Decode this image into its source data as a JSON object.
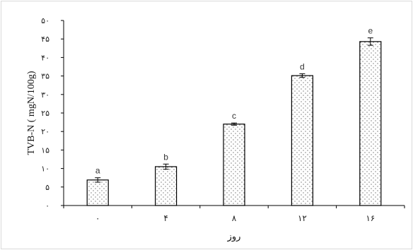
{
  "chart_data": {
    "type": "bar",
    "title": "",
    "xlabel": "روز",
    "ylabel": "TVB-N ( mgN/100g)",
    "ylim": [
      0,
      50
    ],
    "y_ticks": [
      0,
      5,
      10,
      15,
      20,
      25,
      30,
      35,
      40,
      45,
      50
    ],
    "y_tick_labels": [
      "۰",
      "۵",
      "۱۰",
      "۱۵",
      "۲۰",
      "۲۵",
      "۳۰",
      "۳۵",
      "۴۰",
      "۴۵",
      "۵۰"
    ],
    "categories": [
      "۰",
      "۴",
      "۸",
      "۱۲",
      "۱۶"
    ],
    "values": [
      6.9,
      10.5,
      22.0,
      35.1,
      44.3
    ],
    "error": [
      0.6,
      0.7,
      0.3,
      0.5,
      1.0
    ],
    "letters": [
      "a",
      "b",
      "c",
      "d",
      "e"
    ],
    "grid": false,
    "legend": "none",
    "bar_pattern": "dotted",
    "colors": {
      "bar_fill": "#ffffff",
      "bar_stroke": "#000000",
      "dots": "#555555",
      "axis": "#000000"
    }
  }
}
